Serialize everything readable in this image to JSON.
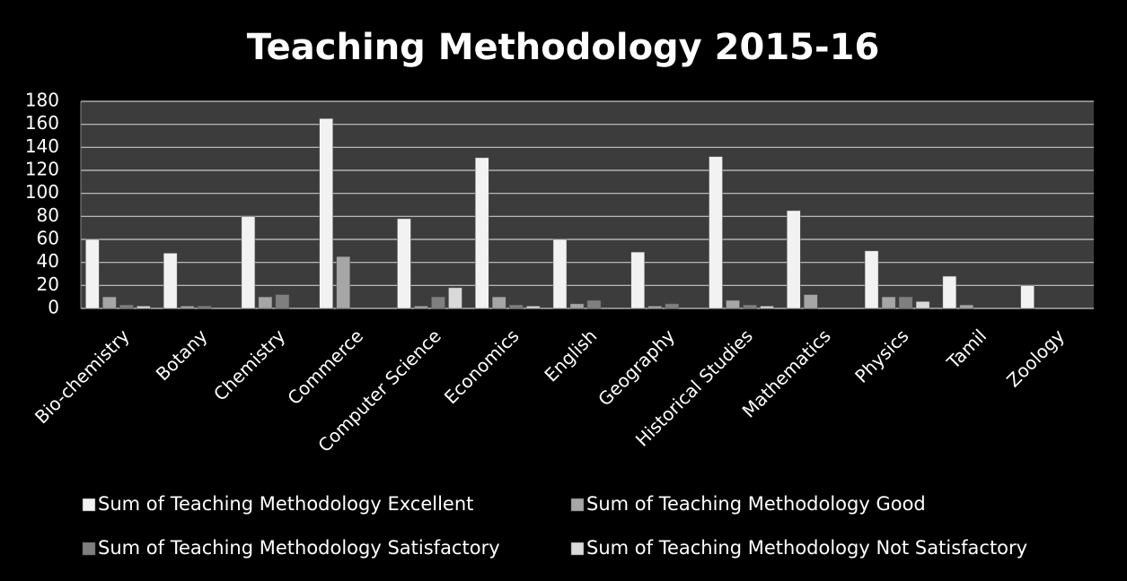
{
  "chart_data": {
    "type": "bar",
    "title": "Teaching Methodology 2015-16",
    "categories": [
      "Bio-chemistry",
      "Botany",
      "Chemistry",
      "Commerce",
      "Computer Science",
      "Economics",
      "English",
      "Geography",
      "Historical Studies",
      "Mathematics",
      "Physics",
      "Tamil",
      "Zoology"
    ],
    "series": [
      {
        "name": "Sum of Teaching Methodology Excellent",
        "color": "#f2f2f2",
        "values": [
          60,
          48,
          80,
          165,
          78,
          131,
          60,
          49,
          132,
          85,
          50,
          28,
          20
        ]
      },
      {
        "name": "Sum of Teaching Methodology Good",
        "color": "#a6a6a6",
        "values": [
          10,
          2,
          10,
          45,
          2,
          10,
          4,
          2,
          7,
          12,
          10,
          3,
          0
        ]
      },
      {
        "name": "Sum of Teaching Methodology Satisfactory",
        "color": "#7f7f7f",
        "values": [
          3,
          2,
          12,
          0,
          10,
          3,
          7,
          4,
          3,
          0,
          10,
          0,
          0
        ]
      },
      {
        "name": "Sum of Teaching Methodology Not Satisfactory",
        "color": "#d9d9d9",
        "values": [
          2,
          0,
          0,
          0,
          18,
          2,
          0,
          0,
          2,
          0,
          6,
          0,
          0
        ]
      }
    ],
    "ylim": [
      0,
      180
    ],
    "yticks": [
      0,
      20,
      40,
      60,
      80,
      100,
      120,
      140,
      160,
      180
    ],
    "grid": true
  }
}
